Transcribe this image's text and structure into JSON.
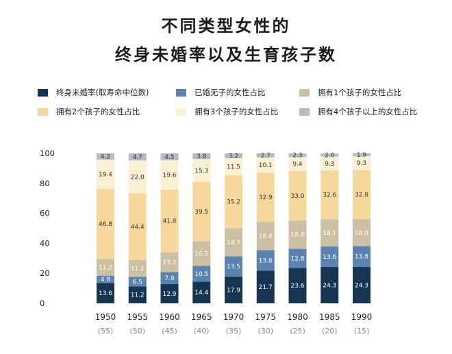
{
  "title_line1": "不同类型女性的",
  "title_line2": "终身未婚率以及生育孩子数",
  "colors": {
    "never_married": "#163552",
    "married_no_child": "#5b83b0",
    "one_child": "#cdbfa4",
    "two_children": "#f7d89c",
    "three_children": "#fbf0d4",
    "four_plus": "#b6bbc2"
  },
  "chart_data": {
    "type": "bar",
    "stacked": true,
    "categories": [
      "1950",
      "1955",
      "1960",
      "1965",
      "1970",
      "1975",
      "1980",
      "1985",
      "1990"
    ],
    "category_sublabels": [
      "(55)",
      "(50)",
      "(45)",
      "(40)",
      "(35)",
      "(30)",
      "(25)",
      "(20)",
      "(15)"
    ],
    "ylim": [
      0,
      100
    ],
    "yticks": [
      0,
      20,
      40,
      60,
      80,
      100
    ],
    "legend_position": "top",
    "series": [
      {
        "name": "终身未婚率(取寿命中位数)",
        "color_key": "never_married",
        "label_color": "#ffffff",
        "values": [
          13.6,
          11.2,
          12.9,
          14.4,
          17.9,
          21.7,
          23.6,
          24.3,
          24.3
        ]
      },
      {
        "name": "已婚无子的女性占比",
        "color_key": "married_no_child",
        "label_color": "#ffffff",
        "values": [
          4.8,
          6.5,
          7.9,
          10.5,
          13.5,
          13.8,
          12.8,
          13.6,
          13.8
        ]
      },
      {
        "name": "拥有1个孩子的女性占比",
        "color_key": "one_child",
        "label_color": "#ffffff",
        "values": [
          11.2,
          11.2,
          13.3,
          16.5,
          18.7,
          18.8,
          18.8,
          18.1,
          18.0
        ]
      },
      {
        "name": "拥有2个孩子的女性占比",
        "color_key": "two_children",
        "label_color": "#333333",
        "values": [
          46.8,
          44.4,
          41.8,
          39.5,
          35.2,
          32.9,
          33.0,
          32.6,
          32.8
        ]
      },
      {
        "name": "拥有3个孩子的女性占比",
        "color_key": "three_children",
        "label_color": "#333333",
        "values": [
          19.4,
          22.0,
          19.6,
          15.3,
          11.5,
          10.1,
          9.4,
          9.3,
          9.3
        ]
      },
      {
        "name": "拥有4个孩子以上的女性占比",
        "color_key": "four_plus",
        "label_color": "#333333",
        "values": [
          4.2,
          4.7,
          4.5,
          3.8,
          3.2,
          2.7,
          2.3,
          2.0,
          1.9
        ]
      }
    ]
  }
}
